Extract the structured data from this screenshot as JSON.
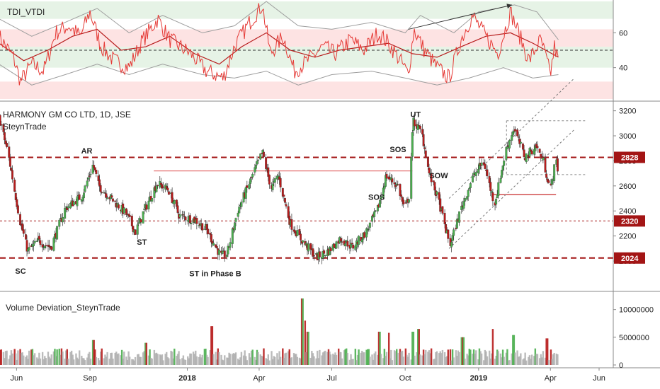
{
  "colors": {
    "up": "#4caf50",
    "down": "#b71c1c",
    "tdi_line": "#e53935",
    "tdi_signal": "#b71c1c",
    "bands": "#9e9e9e",
    "level_badge": "#a31515",
    "zone_green": "#e6f3e6",
    "zone_red": "#fde3e3",
    "text": "#222222"
  },
  "tdi_panel": {
    "title": "TDI_VTDI",
    "ticks": [
      "60",
      "40"
    ],
    "tick_values": [
      60,
      40
    ],
    "ylim": [
      22,
      78
    ],
    "midline": 50
  },
  "price_panel": {
    "title": "HARMONY GM CO LTD, 1D, JSE",
    "subtitle": "SteynTrade",
    "ticks": [
      "3200",
      "3000",
      "2800",
      "2600",
      "2400",
      "2200",
      "2000"
    ],
    "tick_values": [
      3200,
      3000,
      2800,
      2600,
      2400,
      2200,
      2000
    ],
    "ylim": [
      1780,
      3260
    ]
  },
  "volume_panel": {
    "title": "Volume Deviation_SteynTrade",
    "ticks": [
      "10000000",
      "5000000",
      "0"
    ],
    "tick_values": [
      10000000,
      5000000,
      0
    ],
    "ylim": [
      0,
      12000000
    ]
  },
  "x_axis": {
    "labels": [
      "Jun",
      "Sep",
      "2018",
      "Apr",
      "Jul",
      "Oct",
      "2019",
      "Apr",
      "Jun"
    ],
    "label_dates": [
      "2017-06",
      "2017-09",
      "2018-01",
      "2018-04",
      "2018-07",
      "2018-10",
      "2019-01",
      "2019-04",
      "2019-06"
    ]
  },
  "annotations": [
    {
      "text": "AR",
      "date": "2017-08-28",
      "value": 2860
    },
    {
      "text": "SC",
      "date": "2017-06-06",
      "value": 1900
    },
    {
      "text": "ST",
      "date": "2017-11-05",
      "value": 2130
    },
    {
      "text": "ST in Phase B",
      "date": "2018-02-05",
      "value": 1880
    },
    {
      "text": "SOS",
      "date": "2018-08-26",
      "value": 2490
    },
    {
      "text": "SOS",
      "date": "2018-09-22",
      "value": 2870
    },
    {
      "text": "UT",
      "date": "2018-10-14",
      "value": 3150
    },
    {
      "text": "SOW",
      "date": "2018-11-12",
      "value": 2660
    }
  ],
  "level_badges": [
    {
      "label": "2828",
      "value": 2828
    },
    {
      "label": "2320",
      "value": 2320
    },
    {
      "label": "2024",
      "value": 2024
    }
  ],
  "chart_data": {
    "type": "candlestick",
    "title": "HARMONY GM CO LTD, 1D, JSE",
    "ylim": [
      1780,
      3260
    ],
    "levels": [
      2828,
      2320,
      2024
    ],
    "resistance_line": {
      "value": 2720,
      "from": "2017-11-20",
      "to": "2018-10-10"
    },
    "support_line": {
      "value": 2530,
      "from": "2019-01-20",
      "to": "2019-04-08"
    },
    "range_box": {
      "upper": 3120,
      "lower": 2690,
      "from": "2019-02-05",
      "to": "2019-05-15"
    },
    "channel": {
      "lower": [
        [
          "2018-11-25",
          2100
        ],
        [
          "2019-05-01",
          3050
        ]
      ],
      "upper": [
        [
          "2018-11-25",
          2500
        ],
        [
          "2019-05-01",
          3460
        ]
      ]
    },
    "price_path": [
      [
        "2017-05-10",
        3150
      ],
      [
        "2017-05-22",
        2840
      ],
      [
        "2017-06-05",
        2330
      ],
      [
        "2017-06-15",
        2080
      ],
      [
        "2017-06-28",
        2160
      ],
      [
        "2017-07-14",
        2110
      ],
      [
        "2017-08-01",
        2420
      ],
      [
        "2017-08-22",
        2520
      ],
      [
        "2017-09-05",
        2770
      ],
      [
        "2017-09-12",
        2600
      ],
      [
        "2017-10-02",
        2470
      ],
      [
        "2017-10-16",
        2380
      ],
      [
        "2017-10-28",
        2230
      ],
      [
        "2017-11-07",
        2390
      ],
      [
        "2017-11-24",
        2620
      ],
      [
        "2017-12-08",
        2570
      ],
      [
        "2017-12-22",
        2360
      ],
      [
        "2018-01-10",
        2330
      ],
      [
        "2018-01-24",
        2260
      ],
      [
        "2018-02-12",
        2040
      ],
      [
        "2018-02-20",
        2060
      ],
      [
        "2018-03-05",
        2400
      ],
      [
        "2018-03-21",
        2640
      ],
      [
        "2018-04-05",
        2870
      ],
      [
        "2018-04-16",
        2580
      ],
      [
        "2018-04-25",
        2680
      ],
      [
        "2018-05-10",
        2300
      ],
      [
        "2018-05-25",
        2160
      ],
      [
        "2018-06-12",
        2030
      ],
      [
        "2018-06-27",
        2080
      ],
      [
        "2018-07-12",
        2180
      ],
      [
        "2018-07-27",
        2110
      ],
      [
        "2018-08-13",
        2230
      ],
      [
        "2018-08-28",
        2420
      ],
      [
        "2018-09-07",
        2680
      ],
      [
        "2018-09-22",
        2600
      ],
      [
        "2018-09-30",
        2410
      ],
      [
        "2018-10-06",
        2520
      ],
      [
        "2018-10-11",
        3120
      ],
      [
        "2018-10-22",
        3020
      ],
      [
        "2018-10-31",
        2700
      ],
      [
        "2018-11-12",
        2480
      ],
      [
        "2018-11-26",
        2120
      ],
      [
        "2018-12-10",
        2420
      ],
      [
        "2018-12-24",
        2660
      ],
      [
        "2019-01-07",
        2800
      ],
      [
        "2019-01-21",
        2450
      ],
      [
        "2019-02-04",
        2880
      ],
      [
        "2019-02-14",
        3060
      ],
      [
        "2019-02-28",
        2830
      ],
      [
        "2019-03-14",
        2920
      ],
      [
        "2019-03-24",
        2780
      ],
      [
        "2019-04-01",
        2560
      ],
      [
        "2019-04-08",
        2820
      ],
      [
        "2019-04-11",
        2700
      ]
    ],
    "tdi": {
      "line": [
        [
          "2017-05-10",
          58
        ],
        [
          "2017-05-28",
          46
        ],
        [
          "2017-06-06",
          32
        ],
        [
          "2017-06-20",
          42
        ],
        [
          "2017-07-05",
          38
        ],
        [
          "2017-07-20",
          60
        ],
        [
          "2017-08-05",
          64
        ],
        [
          "2017-08-20",
          58
        ],
        [
          "2017-09-01",
          72
        ],
        [
          "2017-09-15",
          52
        ],
        [
          "2017-10-01",
          44
        ],
        [
          "2017-10-20",
          40
        ],
        [
          "2017-11-05",
          55
        ],
        [
          "2017-11-25",
          68
        ],
        [
          "2017-12-10",
          56
        ],
        [
          "2018-01-05",
          48
        ],
        [
          "2018-01-25",
          38
        ],
        [
          "2018-02-15",
          34
        ],
        [
          "2018-03-01",
          52
        ],
        [
          "2018-03-20",
          66
        ],
        [
          "2018-04-05",
          76
        ],
        [
          "2018-04-15",
          48
        ],
        [
          "2018-05-01",
          58
        ],
        [
          "2018-05-15",
          38
        ],
        [
          "2018-06-01",
          44
        ],
        [
          "2018-06-20",
          52
        ],
        [
          "2018-07-05",
          48
        ],
        [
          "2018-07-25",
          56
        ],
        [
          "2018-08-10",
          50
        ],
        [
          "2018-08-28",
          60
        ],
        [
          "2018-09-10",
          54
        ],
        [
          "2018-09-25",
          44
        ],
        [
          "2018-10-05",
          36
        ],
        [
          "2018-10-12",
          62
        ],
        [
          "2018-10-25",
          50
        ],
        [
          "2018-11-10",
          40
        ],
        [
          "2018-11-25",
          34
        ],
        [
          "2018-12-10",
          56
        ],
        [
          "2018-12-24",
          70
        ],
        [
          "2019-01-10",
          58
        ],
        [
          "2019-01-25",
          48
        ],
        [
          "2019-02-10",
          72
        ],
        [
          "2019-02-20",
          60
        ],
        [
          "2019-03-05",
          44
        ],
        [
          "2019-03-20",
          56
        ],
        [
          "2019-04-01",
          36
        ],
        [
          "2019-04-06",
          52
        ],
        [
          "2019-04-11",
          44
        ]
      ],
      "signal": [
        [
          "2017-05-10",
          54
        ],
        [
          "2017-06-10",
          44
        ],
        [
          "2017-07-10",
          50
        ],
        [
          "2017-08-10",
          58
        ],
        [
          "2017-09-10",
          62
        ],
        [
          "2017-10-10",
          50
        ],
        [
          "2017-11-10",
          52
        ],
        [
          "2017-12-10",
          58
        ],
        [
          "2018-01-10",
          48
        ],
        [
          "2018-02-10",
          42
        ],
        [
          "2018-03-10",
          52
        ],
        [
          "2018-04-10",
          60
        ],
        [
          "2018-05-10",
          50
        ],
        [
          "2018-06-10",
          46
        ],
        [
          "2018-07-10",
          50
        ],
        [
          "2018-08-10",
          52
        ],
        [
          "2018-09-10",
          54
        ],
        [
          "2018-10-10",
          48
        ],
        [
          "2018-11-10",
          46
        ],
        [
          "2018-12-10",
          52
        ],
        [
          "2019-01-10",
          58
        ],
        [
          "2019-02-10",
          60
        ],
        [
          "2019-03-10",
          54
        ],
        [
          "2019-04-11",
          46
        ]
      ],
      "upper_band": [
        [
          "2017-05-10",
          68
        ],
        [
          "2017-06-20",
          58
        ],
        [
          "2017-08-01",
          66
        ],
        [
          "2017-09-10",
          74
        ],
        [
          "2017-10-20",
          60
        ],
        [
          "2017-12-01",
          70
        ],
        [
          "2018-01-20",
          60
        ],
        [
          "2018-03-01",
          64
        ],
        [
          "2018-04-10",
          78
        ],
        [
          "2018-05-20",
          64
        ],
        [
          "2018-07-01",
          62
        ],
        [
          "2018-08-20",
          66
        ],
        [
          "2018-10-01",
          60
        ],
        [
          "2018-10-20",
          70
        ],
        [
          "2018-12-01",
          60
        ],
        [
          "2019-01-01",
          72
        ],
        [
          "2019-02-15",
          76
        ],
        [
          "2019-03-15",
          72
        ],
        [
          "2019-04-11",
          56
        ]
      ],
      "lower_band": [
        [
          "2017-05-10",
          42
        ],
        [
          "2017-06-20",
          30
        ],
        [
          "2017-08-01",
          36
        ],
        [
          "2017-09-10",
          42
        ],
        [
          "2017-10-20",
          36
        ],
        [
          "2017-12-01",
          42
        ],
        [
          "2018-01-20",
          36
        ],
        [
          "2018-03-01",
          34
        ],
        [
          "2018-04-10",
          38
        ],
        [
          "2018-05-20",
          30
        ],
        [
          "2018-07-01",
          36
        ],
        [
          "2018-08-20",
          38
        ],
        [
          "2018-10-01",
          34
        ],
        [
          "2018-11-10",
          30
        ],
        [
          "2018-12-20",
          34
        ],
        [
          "2019-02-01",
          40
        ],
        [
          "2019-03-10",
          34
        ],
        [
          "2019-04-11",
          36
        ]
      ],
      "zones": {
        "green": [
          [
            68,
            78
          ],
          [
            40,
            52
          ]
        ],
        "red": [
          [
            52,
            62
          ],
          [
            22,
            32
          ]
        ]
      },
      "arrow": {
        "from": [
          "2018-10-05",
          62
        ],
        "to": [
          "2019-02-12",
          76
        ]
      }
    },
    "volume": {
      "baseline": 2000000,
      "spikes": [
        [
          "2018-05-25",
          12000000
        ],
        [
          "2018-05-28",
          8000000
        ],
        [
          "2018-06-01",
          6000000
        ],
        [
          "2018-02-01",
          7000000
        ],
        [
          "2018-08-30",
          6000000
        ],
        [
          "2018-09-10",
          5800000
        ],
        [
          "2018-10-11",
          6000000
        ],
        [
          "2018-10-18",
          6500000
        ],
        [
          "2018-12-12",
          5000000
        ],
        [
          "2019-01-20",
          6500000
        ],
        [
          "2019-02-14",
          5400000
        ],
        [
          "2019-03-28",
          4800000
        ],
        [
          "2017-09-05",
          4500000
        ],
        [
          "2017-11-10",
          4000000
        ]
      ]
    }
  }
}
